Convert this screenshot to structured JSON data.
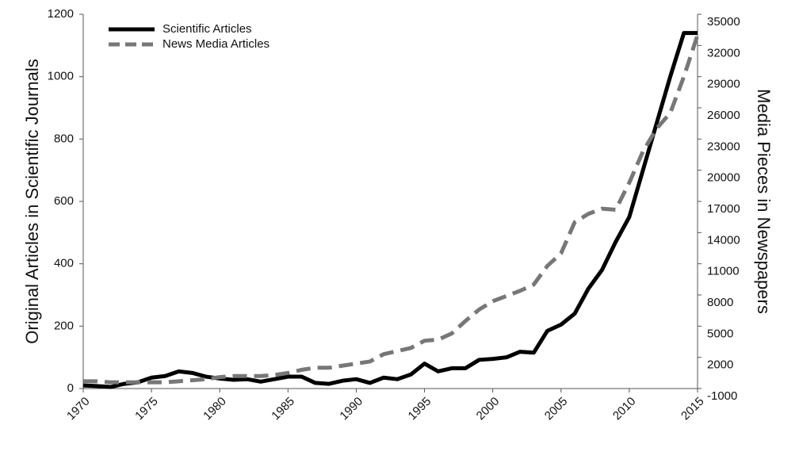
{
  "chart_data": {
    "type": "line",
    "y_label": "Original Articles in Scientific Journals",
    "y2_label": "Media Pieces in Newspapers",
    "x": [
      1970,
      1971,
      1972,
      1973,
      1974,
      1975,
      1976,
      1977,
      1978,
      1979,
      1980,
      1981,
      1982,
      1983,
      1984,
      1985,
      1986,
      1987,
      1988,
      1989,
      1990,
      1991,
      1992,
      1993,
      1994,
      1995,
      1996,
      1997,
      1998,
      1999,
      2000,
      2001,
      2002,
      2003,
      2004,
      2005,
      2006,
      2007,
      2008,
      2009,
      2010,
      2011,
      2012,
      2013,
      2014,
      2015
    ],
    "xlim": [
      1970,
      2015
    ],
    "xticks": [
      1970,
      1975,
      1980,
      1985,
      1990,
      1995,
      2000,
      2005,
      2010,
      2015
    ],
    "ylim": [
      0,
      1200
    ],
    "yticks": [
      0,
      200,
      400,
      600,
      800,
      1000,
      1200
    ],
    "y2lim": [
      -1000,
      35000
    ],
    "y2ticks": [
      -1000,
      2000,
      5000,
      8000,
      11000,
      14000,
      17000,
      20000,
      23000,
      26000,
      29000,
      32000,
      35000
    ],
    "legend": "upper left",
    "series": [
      {
        "name": "Scientific Articles",
        "color": "#000000",
        "dash": false,
        "values": [
          10,
          8,
          5,
          15,
          20,
          35,
          40,
          55,
          50,
          38,
          32,
          28,
          30,
          22,
          30,
          38,
          38,
          18,
          15,
          25,
          30,
          18,
          35,
          30,
          45,
          80,
          55,
          65,
          65,
          92,
          95,
          100,
          118,
          115,
          185,
          205,
          240,
          320,
          380,
          470,
          550,
          700,
          850,
          1000,
          1140,
          1140
        ]
      },
      {
        "name": "News Media Articles",
        "color": "#777777",
        "dash": true,
        "axis": "y2",
        "values": [
          -300,
          -300,
          -400,
          -400,
          -400,
          -400,
          -400,
          -300,
          -200,
          -100,
          100,
          200,
          200,
          200,
          300,
          500,
          800,
          1000,
          1000,
          1200,
          1400,
          1600,
          2300,
          2600,
          2900,
          3600,
          3700,
          4300,
          5500,
          6600,
          7400,
          7900,
          8400,
          9000,
          10800,
          12000,
          15000,
          15800,
          16300,
          16200,
          18800,
          21800,
          24000,
          25500,
          29000,
          33000
        ]
      }
    ]
  }
}
